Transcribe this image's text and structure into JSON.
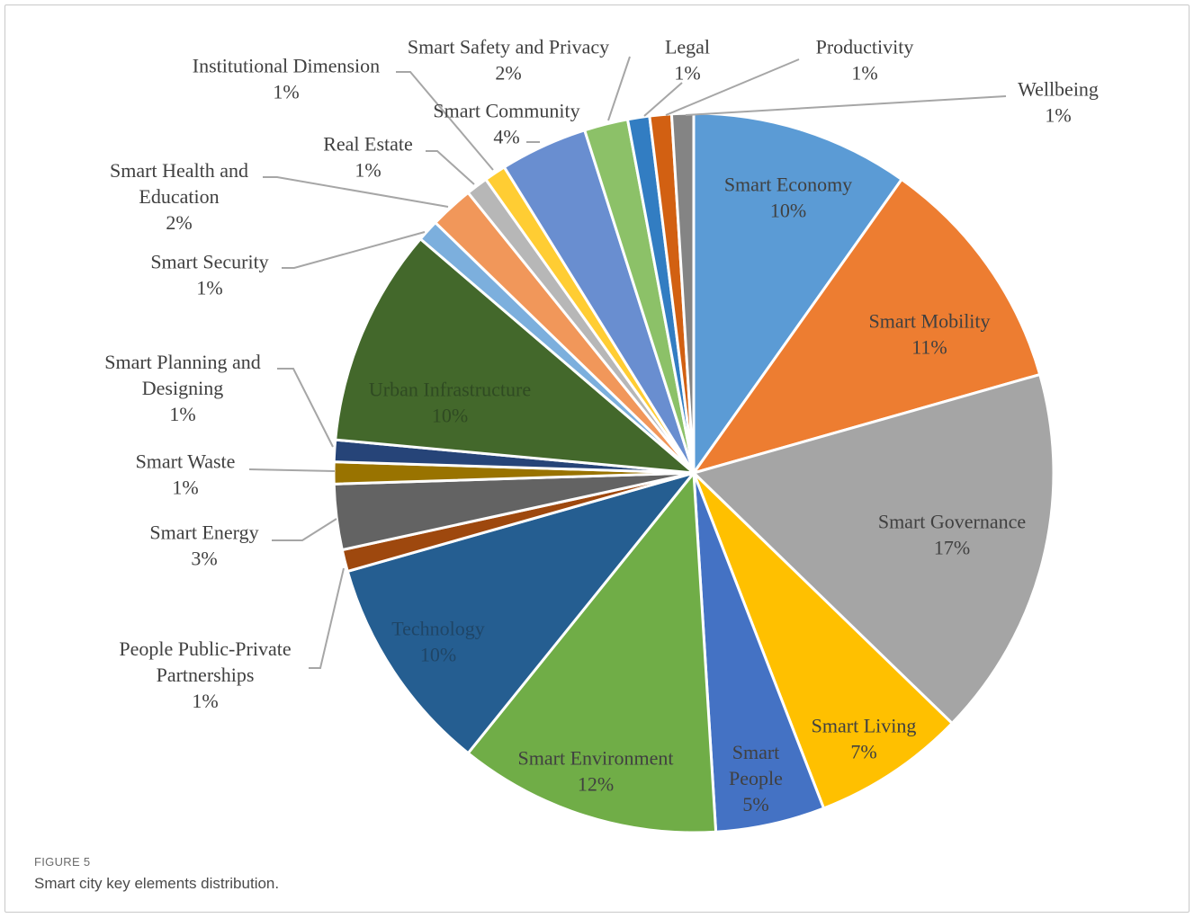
{
  "caption": {
    "label": "FIGURE 5",
    "text": "Smart city key elements distribution."
  },
  "chart_data": {
    "type": "pie",
    "title": "",
    "slices": [
      {
        "name": "Smart Economy",
        "value": 10,
        "label": "10%",
        "color": "#5B9BD5"
      },
      {
        "name": "Smart Mobility",
        "value": 11,
        "label": "11%",
        "color": "#ED7D31"
      },
      {
        "name": "Smart Governance",
        "value": 17,
        "label": "17%",
        "color": "#A5A5A5"
      },
      {
        "name": "Smart Living",
        "value": 7,
        "label": "7%",
        "color": "#FFC000"
      },
      {
        "name": "Smart People",
        "value": 5,
        "label": "5%",
        "color": "#4472C4"
      },
      {
        "name": "Smart Environment",
        "value": 12,
        "label": "12%",
        "color": "#70AD47"
      },
      {
        "name": "Technology",
        "value": 10,
        "label": "10%",
        "color": "#255E91"
      },
      {
        "name": "People Public-Private Partnerships",
        "value": 1,
        "label": "1%",
        "color": "#9E480E"
      },
      {
        "name": "Smart Energy",
        "value": 3,
        "label": "3%",
        "color": "#636363"
      },
      {
        "name": "Smart Waste",
        "value": 1,
        "label": "1%",
        "color": "#997300"
      },
      {
        "name": "Smart Planning and Designing",
        "value": 1,
        "label": "1%",
        "color": "#264478"
      },
      {
        "name": "Urban Infrastructure",
        "value": 10,
        "label": "10%",
        "color": "#43682B"
      },
      {
        "name": "Smart Security",
        "value": 1,
        "label": "1%",
        "color": "#7CAFDD"
      },
      {
        "name": "Smart Health and Education",
        "value": 2,
        "label": "2%",
        "color": "#F1975A"
      },
      {
        "name": "Real Estate",
        "value": 1,
        "label": "1%",
        "color": "#B7B7B7"
      },
      {
        "name": "Institutional Dimension",
        "value": 1,
        "label": "1%",
        "color": "#FFCD33"
      },
      {
        "name": "Smart Community",
        "value": 4,
        "label": "4%",
        "color": "#698ED0"
      },
      {
        "name": "Smart Safety and Privacy",
        "value": 2,
        "label": "2%",
        "color": "#8CC168"
      },
      {
        "name": "Legal",
        "value": 1,
        "label": "1%",
        "color": "#327DC2"
      },
      {
        "name": "Productivity",
        "value": 1,
        "label": "1%",
        "color": "#D26012"
      },
      {
        "name": "Wellbeing",
        "value": 1,
        "label": "1%",
        "color": "#848484"
      }
    ]
  }
}
